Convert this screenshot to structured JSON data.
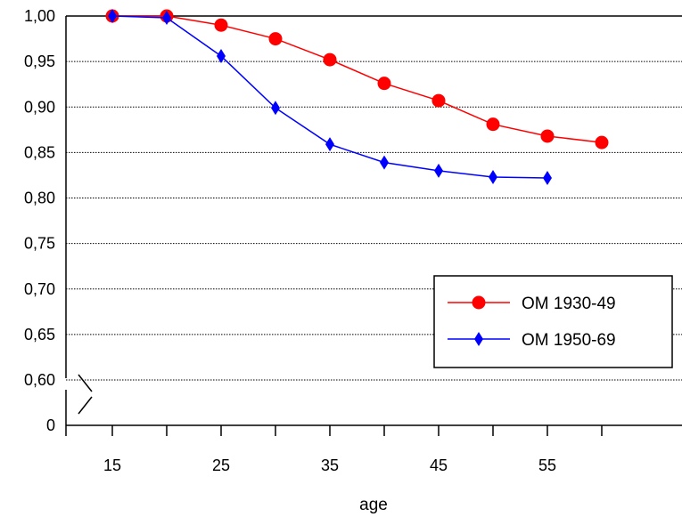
{
  "chart_data": {
    "type": "line",
    "xlabel": "age",
    "ylabel": "",
    "x": [
      15,
      20,
      25,
      30,
      35,
      40,
      45,
      50,
      55,
      60
    ],
    "x_tick_labels": [
      "15",
      "25",
      "35",
      "45",
      "55"
    ],
    "x_range": [
      15,
      60
    ],
    "y_upper_range": [
      0.6,
      1.0
    ],
    "y_tick_labels": [
      "1,00",
      "0,95",
      "0,90",
      "0,85",
      "0,80",
      "0,75",
      "0,70",
      "0,65",
      "0,60"
    ],
    "y_break_label": "0",
    "y_axis_break": true,
    "grid": "horizontal dotted",
    "legend_position": "bottom-right",
    "series": [
      {
        "name": "OM 1930-49",
        "color": "#ff0000",
        "marker": "circle",
        "values": [
          1.0,
          1.0,
          0.99,
          0.975,
          0.952,
          0.926,
          0.907,
          0.881,
          0.868,
          0.861
        ]
      },
      {
        "name": "OM 1950-69",
        "color": "#0000ff",
        "marker": "diamond",
        "values": [
          1.0,
          0.998,
          0.956,
          0.899,
          0.859,
          0.839,
          0.83,
          0.823,
          0.822,
          null
        ]
      }
    ]
  }
}
